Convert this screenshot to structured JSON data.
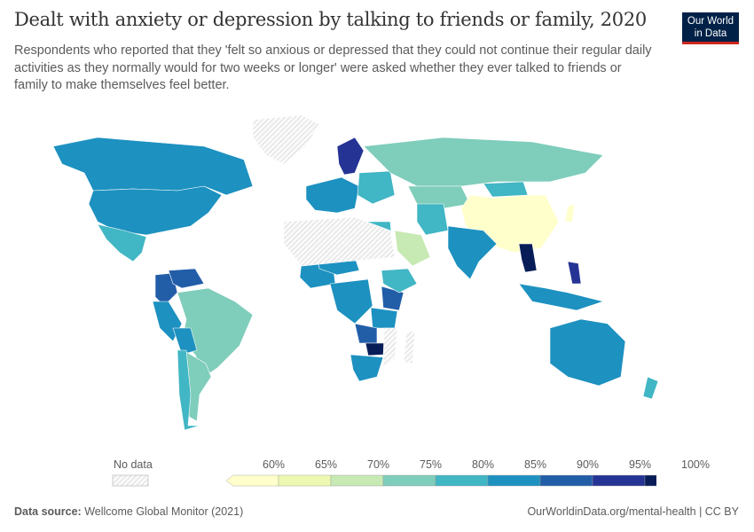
{
  "header": {
    "title": "Dealt with anxiety or depression by talking to friends or family, 2020",
    "subtitle": "Respondents who reported that they 'felt so anxious or depressed that they could not continue their regular daily activities as they normally would for two weeks or longer' were asked whether they ever talked to friends or family to make themselves feel better.",
    "logo_text": "Our World in Data"
  },
  "footer": {
    "source_label": "Data source:",
    "source": "Wellcome Global Monitor (2021)",
    "url": "OurWorldinData.org/mental-health | CC BY"
  },
  "chart_data": {
    "type": "choropleth",
    "year": 2020,
    "legend": {
      "no_data_label": "No data",
      "ticks": [
        "60%",
        "65%",
        "70%",
        "75%",
        "80%",
        "85%",
        "90%",
        "95%",
        "100%"
      ],
      "bins": [
        {
          "range": "<60%",
          "color": "#ffffcc"
        },
        {
          "range": "60-65%",
          "color": "#edf8b1"
        },
        {
          "range": "65-70%",
          "color": "#c7e9b4"
        },
        {
          "range": "70-75%",
          "color": "#7fcdbb"
        },
        {
          "range": "75-80%",
          "color": "#41b6c4"
        },
        {
          "range": "80-85%",
          "color": "#1d91c0"
        },
        {
          "range": "85-90%",
          "color": "#225ea8"
        },
        {
          "range": "90-95%",
          "color": "#253494"
        },
        {
          "range": "95-100%",
          "color": "#081d58"
        }
      ]
    },
    "countries": [
      {
        "name": "Canada",
        "bin": "80-85%"
      },
      {
        "name": "United States",
        "bin": "80-85%"
      },
      {
        "name": "Greenland",
        "bin": "No data"
      },
      {
        "name": "Mexico",
        "bin": "75-80%"
      },
      {
        "name": "Colombia",
        "bin": "85-90%"
      },
      {
        "name": "Venezuela",
        "bin": "85-90%"
      },
      {
        "name": "Peru",
        "bin": "80-85%"
      },
      {
        "name": "Brazil",
        "bin": "70-75%"
      },
      {
        "name": "Bolivia",
        "bin": "80-85%"
      },
      {
        "name": "Argentina",
        "bin": "70-75%"
      },
      {
        "name": "Chile",
        "bin": "75-80%"
      },
      {
        "name": "Scandinavia",
        "bin": "90-95%"
      },
      {
        "name": "Western Europe",
        "bin": "80-85%"
      },
      {
        "name": "Eastern Europe",
        "bin": "75-80%"
      },
      {
        "name": "Russia",
        "bin": "70-75%"
      },
      {
        "name": "Kazakhstan",
        "bin": "70-75%"
      },
      {
        "name": "Mongolia",
        "bin": "75-80%"
      },
      {
        "name": "China",
        "bin": "<60%"
      },
      {
        "name": "Japan",
        "bin": "<60%"
      },
      {
        "name": "India",
        "bin": "80-85%"
      },
      {
        "name": "Iran",
        "bin": "75-80%"
      },
      {
        "name": "Saudi Arabia",
        "bin": "65-70%"
      },
      {
        "name": "Egypt",
        "bin": "75-80%"
      },
      {
        "name": "Thailand",
        "bin": "95-100%"
      },
      {
        "name": "Philippines",
        "bin": "90-95%"
      },
      {
        "name": "Indonesia",
        "bin": "80-85%"
      },
      {
        "name": "Australia",
        "bin": "80-85%"
      },
      {
        "name": "New Zealand",
        "bin": "75-80%"
      },
      {
        "name": "Nigeria",
        "bin": "80-85%"
      },
      {
        "name": "Niger/Chad",
        "bin": "80-85%"
      },
      {
        "name": "Congo",
        "bin": "80-85%"
      },
      {
        "name": "Kenya",
        "bin": "85-90%"
      },
      {
        "name": "Tanzania",
        "bin": "80-85%"
      },
      {
        "name": "Zambia",
        "bin": "85-90%"
      },
      {
        "name": "Zimbabwe",
        "bin": "95-100%"
      },
      {
        "name": "South Africa",
        "bin": "80-85%"
      },
      {
        "name": "Ethiopia",
        "bin": "75-80%"
      },
      {
        "name": "Sahara region",
        "bin": "No data"
      },
      {
        "name": "Mozambique",
        "bin": "No data"
      },
      {
        "name": "Madagascar",
        "bin": "No data"
      },
      {
        "name": "Antarctica/North",
        "bin": "No data"
      }
    ]
  }
}
